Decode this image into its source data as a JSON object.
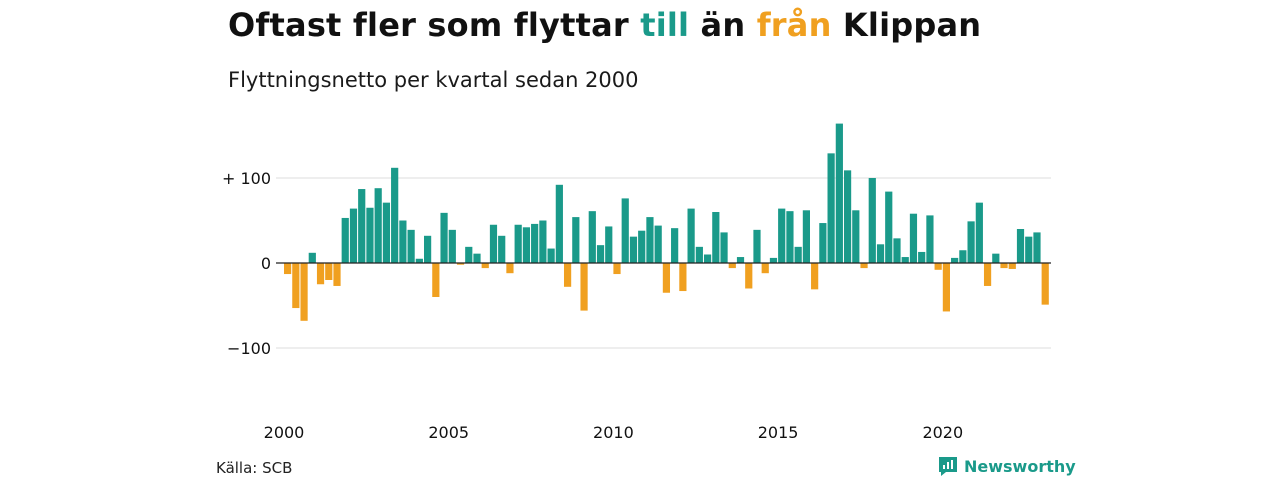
{
  "title": {
    "part1": "Oftast fler som flyttar ",
    "till": "till",
    "part2": " än ",
    "fran": "från",
    "part3": " Klippan"
  },
  "subtitle": "Flyttningsnetto per kvartal sedan 2000",
  "source": "Källa: SCB",
  "brand": "Newsworthy",
  "colors": {
    "positive": "#1a9a8a",
    "negative": "#f0a020",
    "grid": "#dddddd",
    "zero": "#222222"
  },
  "chart_data": {
    "type": "bar",
    "title": "Oftast fler som flyttar till än från Klippan",
    "subtitle": "Flyttningsnetto per kvartal sedan 2000",
    "xlabel": "",
    "ylabel": "",
    "x_start_year": 2000,
    "quarters_per_year": 4,
    "ylim": [
      -150,
      165
    ],
    "yticks": [
      {
        "value": 100,
        "label": "+ 100"
      },
      {
        "value": 0,
        "label": "0"
      },
      {
        "value": -100,
        "label": "−100"
      }
    ],
    "xticks": [
      {
        "year": 2000,
        "label": "2000"
      },
      {
        "year": 2005,
        "label": "2005"
      },
      {
        "year": 2010,
        "label": "2010"
      },
      {
        "year": 2015,
        "label": "2015"
      },
      {
        "year": 2020,
        "label": "2020"
      }
    ],
    "grid": true,
    "values": [
      -13,
      -53,
      -68,
      12,
      -25,
      -20,
      -27,
      53,
      64,
      87,
      65,
      88,
      71,
      112,
      50,
      39,
      5,
      32,
      -40,
      59,
      39,
      -2,
      19,
      11,
      -6,
      45,
      32,
      -12,
      45,
      42,
      46,
      50,
      17,
      92,
      -28,
      54,
      -56,
      61,
      21,
      43,
      -13,
      76,
      31,
      38,
      54,
      44,
      -35,
      41,
      -33,
      64,
      19,
      10,
      60,
      36,
      -6,
      7,
      -30,
      39,
      -12,
      6,
      64,
      61,
      19,
      62,
      -31,
      47,
      129,
      164,
      109,
      62,
      -6,
      100,
      22,
      84,
      29,
      7,
      58,
      13,
      56,
      -8,
      -57,
      6,
      15,
      49,
      71,
      -27,
      11,
      -6,
      -7,
      40,
      31,
      36,
      -49
    ]
  }
}
